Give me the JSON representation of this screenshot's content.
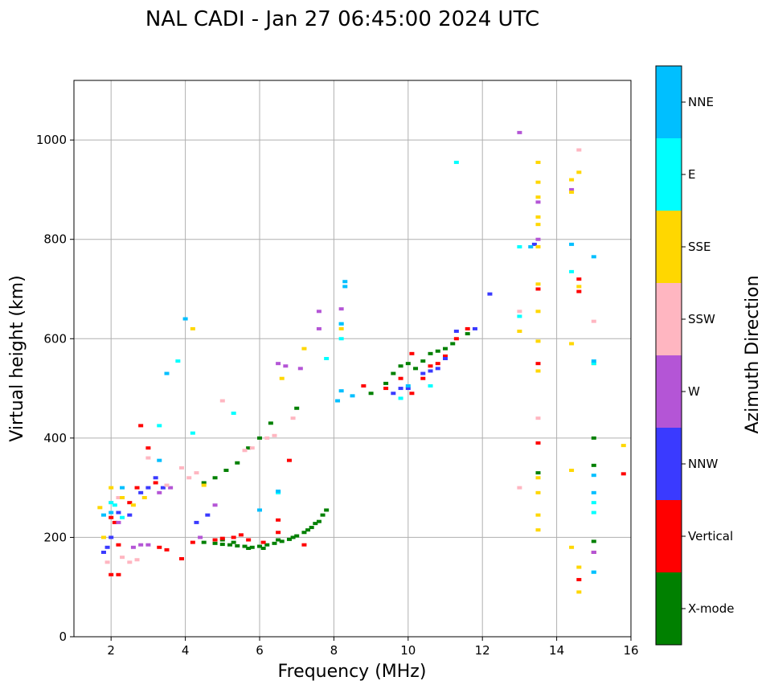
{
  "chart_data": {
    "type": "scatter",
    "title": "NAL CADI - Jan 27 06:45:00 2024 UTC",
    "xlabel": "Frequency (MHz)",
    "ylabel": "Virtual height (km)",
    "xlim": [
      1,
      16
    ],
    "ylim": [
      0,
      1120
    ],
    "xticks": [
      2,
      4,
      6,
      8,
      10,
      12,
      14,
      16
    ],
    "yticks": [
      0,
      200,
      400,
      600,
      800,
      1000
    ],
    "grid": true,
    "colorbar": {
      "title": "Azimuth Direction",
      "categories": [
        {
          "name": "X-mode",
          "color": "#008000"
        },
        {
          "name": "Vertical",
          "color": "#ff0000"
        },
        {
          "name": "NNW",
          "color": "#3a3aff"
        },
        {
          "name": "W",
          "color": "#b455d6"
        },
        {
          "name": "SSW",
          "color": "#ffb6c1"
        },
        {
          "name": "SSE",
          "color": "#ffd700"
        },
        {
          "name": "E",
          "color": "#00ffff"
        },
        {
          "name": "NNE",
          "color": "#00bfff"
        }
      ]
    },
    "series": [
      {
        "name": "X-mode",
        "points": [
          [
            4.5,
            190
          ],
          [
            4.8,
            188
          ],
          [
            5.0,
            186
          ],
          [
            5.2,
            185
          ],
          [
            5.4,
            183
          ],
          [
            5.6,
            182
          ],
          [
            5.8,
            180
          ],
          [
            6.0,
            182
          ],
          [
            6.2,
            185
          ],
          [
            6.4,
            188
          ],
          [
            6.6,
            192
          ],
          [
            6.8,
            196
          ],
          [
            7.0,
            203
          ],
          [
            7.2,
            210
          ],
          [
            7.4,
            220
          ],
          [
            7.6,
            232
          ],
          [
            7.7,
            245
          ],
          [
            7.8,
            255
          ],
          [
            5.0,
            195
          ],
          [
            5.3,
            190
          ],
          [
            5.7,
            178
          ],
          [
            6.1,
            178
          ],
          [
            6.5,
            195
          ],
          [
            6.9,
            200
          ],
          [
            7.3,
            215
          ],
          [
            7.5,
            228
          ],
          [
            4.5,
            310
          ],
          [
            4.8,
            320
          ],
          [
            5.1,
            335
          ],
          [
            5.4,
            350
          ],
          [
            5.7,
            380
          ],
          [
            6.0,
            400
          ],
          [
            6.3,
            430
          ],
          [
            7.0,
            460
          ],
          [
            9.0,
            490
          ],
          [
            9.4,
            510
          ],
          [
            9.6,
            530
          ],
          [
            9.8,
            545
          ],
          [
            10.0,
            550
          ],
          [
            10.2,
            540
          ],
          [
            10.4,
            555
          ],
          [
            10.6,
            570
          ],
          [
            10.8,
            575
          ],
          [
            11.0,
            580
          ],
          [
            11.2,
            590
          ],
          [
            11.6,
            610
          ],
          [
            15.0,
            400
          ],
          [
            15.0,
            345
          ],
          [
            15.0,
            192
          ],
          [
            13.5,
            330
          ]
        ]
      },
      {
        "name": "Vertical",
        "points": [
          [
            2.0,
            240
          ],
          [
            2.1,
            230
          ],
          [
            2.2,
            185
          ],
          [
            2.0,
            125
          ],
          [
            2.2,
            125
          ],
          [
            2.5,
            270
          ],
          [
            2.7,
            300
          ],
          [
            2.8,
            425
          ],
          [
            3.0,
            380
          ],
          [
            3.2,
            310
          ],
          [
            3.3,
            180
          ],
          [
            3.5,
            175
          ],
          [
            3.9,
            157
          ],
          [
            4.2,
            190
          ],
          [
            4.8,
            195
          ],
          [
            5.0,
            198
          ],
          [
            5.3,
            200
          ],
          [
            5.5,
            205
          ],
          [
            5.7,
            195
          ],
          [
            6.1,
            190
          ],
          [
            6.5,
            235
          ],
          [
            6.5,
            210
          ],
          [
            6.8,
            355
          ],
          [
            7.2,
            185
          ],
          [
            8.8,
            505
          ],
          [
            9.4,
            500
          ],
          [
            9.8,
            520
          ],
          [
            10.1,
            490
          ],
          [
            10.1,
            570
          ],
          [
            10.4,
            520
          ],
          [
            10.6,
            545
          ],
          [
            10.8,
            550
          ],
          [
            11.0,
            565
          ],
          [
            11.3,
            600
          ],
          [
            11.6,
            620
          ],
          [
            13.5,
            550
          ],
          [
            13.5,
            390
          ],
          [
            13.5,
            700
          ],
          [
            14.6,
            720
          ],
          [
            14.6,
            695
          ],
          [
            14.6,
            115
          ],
          [
            15.0,
            170
          ],
          [
            15.8,
            328
          ]
        ]
      },
      {
        "name": "NNW",
        "points": [
          [
            1.8,
            170
          ],
          [
            1.9,
            180
          ],
          [
            2.0,
            200
          ],
          [
            2.2,
            250
          ],
          [
            2.5,
            245
          ],
          [
            2.8,
            290
          ],
          [
            3.0,
            300
          ],
          [
            3.2,
            320
          ],
          [
            3.4,
            300
          ],
          [
            4.3,
            230
          ],
          [
            4.6,
            245
          ],
          [
            9.6,
            490
          ],
          [
            9.8,
            500
          ],
          [
            10.0,
            500
          ],
          [
            10.4,
            530
          ],
          [
            10.6,
            535
          ],
          [
            10.8,
            540
          ],
          [
            11.0,
            560
          ],
          [
            11.3,
            615
          ],
          [
            11.8,
            620
          ],
          [
            12.2,
            690
          ],
          [
            13.4,
            790
          ]
        ]
      },
      {
        "name": "W",
        "points": [
          [
            2.2,
            230
          ],
          [
            2.6,
            180
          ],
          [
            2.8,
            185
          ],
          [
            3.0,
            185
          ],
          [
            3.3,
            290
          ],
          [
            3.6,
            300
          ],
          [
            4.4,
            200
          ],
          [
            4.8,
            265
          ],
          [
            6.5,
            550
          ],
          [
            6.7,
            545
          ],
          [
            7.1,
            540
          ],
          [
            7.6,
            620
          ],
          [
            7.6,
            655
          ],
          [
            8.2,
            660
          ],
          [
            13.0,
            1015
          ],
          [
            13.5,
            800
          ],
          [
            13.5,
            875
          ],
          [
            14.4,
            900
          ],
          [
            15.0,
            170
          ]
        ]
      },
      {
        "name": "SSW",
        "points": [
          [
            1.9,
            150
          ],
          [
            2.0,
            270
          ],
          [
            2.2,
            280
          ],
          [
            2.3,
            160
          ],
          [
            2.5,
            150
          ],
          [
            2.7,
            155
          ],
          [
            3.0,
            360
          ],
          [
            3.5,
            305
          ],
          [
            3.9,
            340
          ],
          [
            4.1,
            320
          ],
          [
            4.3,
            330
          ],
          [
            5.0,
            475
          ],
          [
            5.6,
            375
          ],
          [
            5.8,
            380
          ],
          [
            6.2,
            400
          ],
          [
            6.4,
            405
          ],
          [
            6.9,
            440
          ],
          [
            13.0,
            300
          ],
          [
            13.0,
            655
          ],
          [
            13.5,
            440
          ],
          [
            14.6,
            980
          ],
          [
            15.0,
            635
          ]
        ]
      },
      {
        "name": "SSE",
        "points": [
          [
            1.7,
            260
          ],
          [
            1.8,
            200
          ],
          [
            2.0,
            300
          ],
          [
            2.3,
            280
          ],
          [
            2.6,
            265
          ],
          [
            2.9,
            280
          ],
          [
            4.2,
            620
          ],
          [
            4.5,
            305
          ],
          [
            6.6,
            520
          ],
          [
            7.2,
            580
          ],
          [
            8.2,
            620
          ],
          [
            13.0,
            615
          ],
          [
            13.5,
            215
          ],
          [
            13.5,
            245
          ],
          [
            13.5,
            290
          ],
          [
            13.5,
            320
          ],
          [
            13.5,
            535
          ],
          [
            13.5,
            595
          ],
          [
            13.5,
            655
          ],
          [
            13.5,
            710
          ],
          [
            13.5,
            785
          ],
          [
            13.5,
            830
          ],
          [
            13.5,
            845
          ],
          [
            13.5,
            885
          ],
          [
            13.5,
            915
          ],
          [
            13.5,
            955
          ],
          [
            14.4,
            920
          ],
          [
            14.4,
            895
          ],
          [
            14.4,
            590
          ],
          [
            14.4,
            335
          ],
          [
            14.4,
            180
          ],
          [
            14.6,
            935
          ],
          [
            14.6,
            705
          ],
          [
            14.6,
            140
          ],
          [
            14.6,
            90
          ],
          [
            15.0,
            550
          ],
          [
            15.8,
            385
          ]
        ]
      },
      {
        "name": "E",
        "points": [
          [
            2.0,
            270
          ],
          [
            2.1,
            265
          ],
          [
            2.3,
            240
          ],
          [
            3.3,
            425
          ],
          [
            3.8,
            555
          ],
          [
            4.2,
            410
          ],
          [
            5.3,
            450
          ],
          [
            6.5,
            290
          ],
          [
            7.8,
            560
          ],
          [
            8.2,
            630
          ],
          [
            8.2,
            600
          ],
          [
            9.8,
            480
          ],
          [
            10.6,
            505
          ],
          [
            11.3,
            955
          ],
          [
            13.0,
            785
          ],
          [
            13.0,
            645
          ],
          [
            14.4,
            735
          ],
          [
            15.0,
            550
          ],
          [
            15.0,
            270
          ],
          [
            15.0,
            250
          ],
          [
            15.0,
            130
          ]
        ]
      },
      {
        "name": "NNE",
        "points": [
          [
            1.8,
            245
          ],
          [
            2.0,
            250
          ],
          [
            2.3,
            300
          ],
          [
            3.3,
            355
          ],
          [
            4.0,
            640
          ],
          [
            3.5,
            530
          ],
          [
            6.0,
            255
          ],
          [
            6.5,
            293
          ],
          [
            8.2,
            630
          ],
          [
            8.2,
            495
          ],
          [
            8.1,
            475
          ],
          [
            8.3,
            715
          ],
          [
            8.3,
            705
          ],
          [
            8.5,
            485
          ],
          [
            10.0,
            505
          ],
          [
            13.3,
            785
          ],
          [
            14.4,
            790
          ],
          [
            15.0,
            765
          ],
          [
            15.0,
            555
          ],
          [
            15.0,
            325
          ],
          [
            15.0,
            290
          ],
          [
            15.0,
            130
          ]
        ]
      }
    ]
  }
}
